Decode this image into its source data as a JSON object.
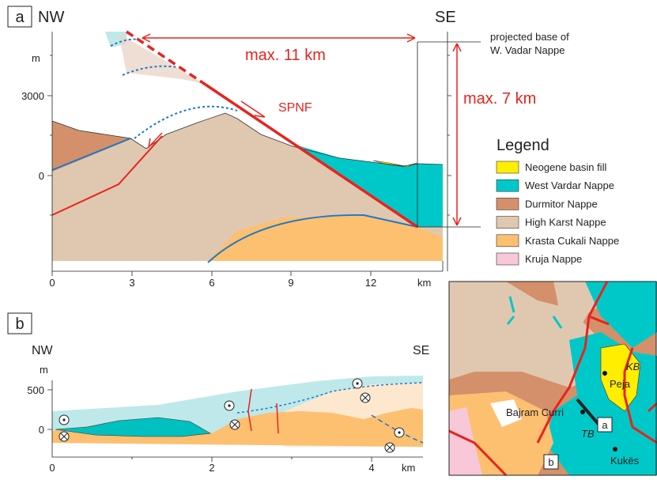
{
  "panel_a": {
    "label": "a",
    "left": "NW",
    "right": "SE",
    "y_unit": "m",
    "y_ticks": [
      "3000",
      "0"
    ],
    "x_ticks": [
      "0",
      "3",
      "6",
      "9",
      "12"
    ],
    "x_unit": "km",
    "projected_base": [
      "projected base of",
      "W. Vadar Nappe"
    ],
    "max_horizontal": "max. 11 km",
    "max_vertical": "max. 7 km",
    "fault": "SPNF"
  },
  "legend": {
    "title": "Legend",
    "items": [
      {
        "label": "Neogene basin fill",
        "color": "#ffee00"
      },
      {
        "label": "West Vardar Nappe",
        "color": "#00c8c8"
      },
      {
        "label": "Durmitor Nappe",
        "color": "#d4906a"
      },
      {
        "label": "High Karst Nappe",
        "color": "#e0c8b0"
      },
      {
        "label": "Krasta Cukali Nappe",
        "color": "#fdc070"
      },
      {
        "label": "Kruja Nappe",
        "color": "#f8c8d8"
      }
    ]
  },
  "panel_b": {
    "label": "b",
    "left": "NW",
    "right": "SE",
    "y_unit": "m",
    "y_ticks": [
      "500",
      "0"
    ],
    "x_ticks": [
      "0",
      "2",
      "4"
    ],
    "x_unit": "km"
  },
  "map": {
    "places": [
      "Peja",
      "KB",
      "Bajram Curri",
      "TB",
      "a",
      "b",
      "Kukës"
    ]
  }
}
